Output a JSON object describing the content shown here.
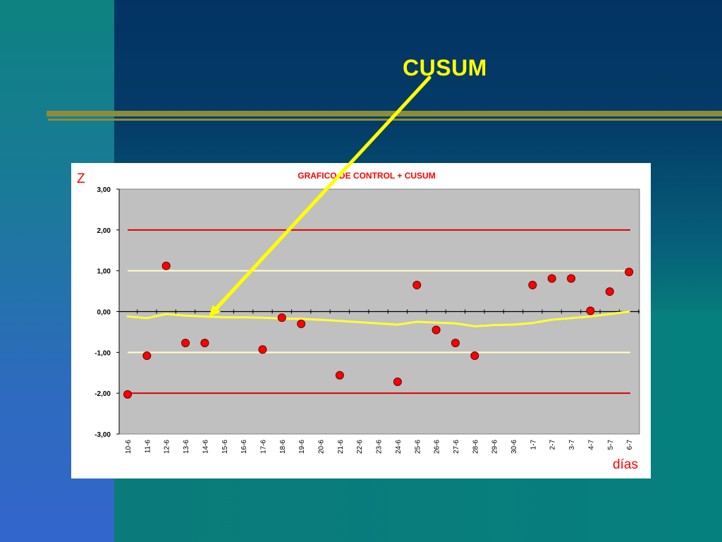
{
  "slide": {
    "title": "CUSUM",
    "colors": {
      "title": "#ffff00",
      "arrow": "#ffff00",
      "rule": "#8c8c3a"
    }
  },
  "chart_data": {
    "type": "scatter",
    "title": "GRAFICO DE CONTROL + CUSUM",
    "ylabel": "Z",
    "xlabel": "días",
    "ylim": [
      -3,
      3
    ],
    "yticks": [
      "3,00",
      "2,00",
      "1,00",
      "0,00",
      "-1,00",
      "-2,00",
      "-3,00"
    ],
    "ytick_values": [
      3,
      2,
      1,
      0,
      -1,
      -2,
      -3
    ],
    "categories": [
      "10-6",
      "11-6",
      "12-6",
      "13-6",
      "14-6",
      "15-6",
      "16-6",
      "17-6",
      "18-6",
      "19-6",
      "20-6",
      "21-6",
      "22-6",
      "23-6",
      "24-6",
      "25-6",
      "26-6",
      "27-6",
      "28-6",
      "29-6",
      "30-6",
      "1-7",
      "2-7",
      "3-7",
      "4-7",
      "5-7",
      "6-7"
    ],
    "series": [
      {
        "kind": "points",
        "color": "#ff0000",
        "values": [
          -2.03,
          -1.08,
          1.12,
          -0.77,
          -0.77,
          null,
          null,
          -0.93,
          -0.15,
          -0.3,
          null,
          -1.56,
          null,
          null,
          -1.72,
          0.65,
          -0.45,
          -0.77,
          -1.08,
          null,
          null,
          0.65,
          0.81,
          0.81,
          0.02,
          0.49,
          0.97
        ]
      },
      {
        "kind": "line",
        "color": "#ffff33",
        "values": [
          -0.12,
          -0.16,
          -0.06,
          -0.1,
          -0.12,
          -0.14,
          -0.14,
          -0.15,
          -0.17,
          -0.18,
          -0.2,
          -0.23,
          -0.26,
          -0.29,
          -0.32,
          -0.25,
          -0.27,
          -0.29,
          -0.36,
          -0.33,
          -0.32,
          -0.28,
          -0.2,
          -0.16,
          -0.12,
          -0.06,
          0.0
        ]
      }
    ],
    "reference_lines": [
      {
        "value": 2,
        "color": "#e00000"
      },
      {
        "value": -2,
        "color": "#e00000"
      },
      {
        "value": 1,
        "color": "#ffffcc"
      },
      {
        "value": -1,
        "color": "#ffffcc"
      }
    ],
    "colors": {
      "plot_bg": "#c0c0c0",
      "title": "#ff0000",
      "axis_labels": "#ff0000"
    },
    "grid": false
  }
}
